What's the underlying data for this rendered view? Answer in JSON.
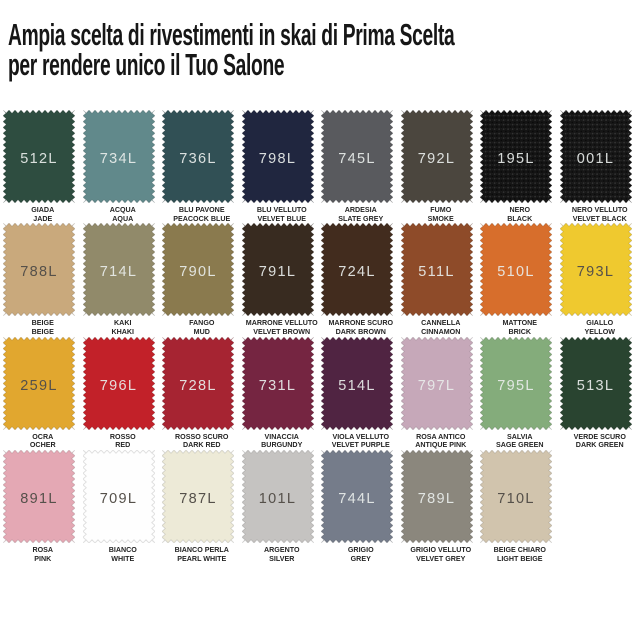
{
  "title": {
    "line1": "Ampia scelta di rivestimenti in skai di Prima Scelta",
    "line2": "per rendere unico il Tuo Salone",
    "color": "#161616"
  },
  "grid": {
    "columns": 8
  },
  "code_text_colors": {
    "light": "#e9edeb",
    "dark": "#55504a"
  },
  "swatches": [
    {
      "code": "512L",
      "name_it": "GIADA",
      "name_en": "JADE",
      "color": "#2e4d40",
      "code_text": "light",
      "grain": false
    },
    {
      "code": "734L",
      "name_it": "ACQUA",
      "name_en": "AQUA",
      "color": "#61898b",
      "code_text": "light",
      "grain": false
    },
    {
      "code": "736L",
      "name_it": "BLU PAVONE",
      "name_en": "PEACOCK BLUE",
      "color": "#315055",
      "code_text": "light",
      "grain": false
    },
    {
      "code": "798L",
      "name_it": "BLU VELLUTO",
      "name_en": "VELVET BLUE",
      "color": "#20263f",
      "code_text": "light",
      "grain": false
    },
    {
      "code": "745L",
      "name_it": "ARDESIA",
      "name_en": "SLATE GREY",
      "color": "#595a5e",
      "code_text": "light",
      "grain": false
    },
    {
      "code": "792L",
      "name_it": "FUMO",
      "name_en": "SMOKE",
      "color": "#4b463e",
      "code_text": "light",
      "grain": false
    },
    {
      "code": "195L",
      "name_it": "NERO",
      "name_en": "BLACK",
      "color": "#141414",
      "code_text": "light",
      "grain": true
    },
    {
      "code": "001L",
      "name_it": "NERO VELLUTO",
      "name_en": "VELVET BLACK",
      "color": "#161616",
      "code_text": "light",
      "grain": true
    },
    {
      "code": "788L",
      "name_it": "BEIGE",
      "name_en": "BEIGE",
      "color": "#c9a97c",
      "code_text": "dark",
      "grain": false
    },
    {
      "code": "714L",
      "name_it": "KAKI",
      "name_en": "KHAKI",
      "color": "#918a6a",
      "code_text": "light",
      "grain": false
    },
    {
      "code": "790L",
      "name_it": "FANGO",
      "name_en": "MUD",
      "color": "#8a7a4e",
      "code_text": "light",
      "grain": false
    },
    {
      "code": "791L",
      "name_it": "MARRONE VELLUTO",
      "name_en": "VELVET BROWN",
      "color": "#382b20",
      "code_text": "light",
      "grain": false
    },
    {
      "code": "724L",
      "name_it": "MARRONE SCURO",
      "name_en": "DARK BROWN",
      "color": "#422c1e",
      "code_text": "light",
      "grain": false
    },
    {
      "code": "511L",
      "name_it": "CANNELLA",
      "name_en": "CINNAMON",
      "color": "#8e4b29",
      "code_text": "light",
      "grain": false
    },
    {
      "code": "510L",
      "name_it": "MATTONE",
      "name_en": "BRICK",
      "color": "#d76e2c",
      "code_text": "light",
      "grain": false
    },
    {
      "code": "793L",
      "name_it": "GIALLO",
      "name_en": "YELLOW",
      "color": "#efc92f",
      "code_text": "dark",
      "grain": false
    },
    {
      "code": "259L",
      "name_it": "OCRA",
      "name_en": "OCHER",
      "color": "#e1a72f",
      "code_text": "dark",
      "grain": false
    },
    {
      "code": "796L",
      "name_it": "ROSSO",
      "name_en": "RED",
      "color": "#c22129",
      "code_text": "light",
      "grain": false
    },
    {
      "code": "728L",
      "name_it": "ROSSO SCURO",
      "name_en": "DARK RED",
      "color": "#a62432",
      "code_text": "light",
      "grain": false
    },
    {
      "code": "731L",
      "name_it": "VINACCIA",
      "name_en": "BURGUNDY",
      "color": "#752541",
      "code_text": "light",
      "grain": false
    },
    {
      "code": "514L",
      "name_it": "VIOLA VELLUTO",
      "name_en": "VELVET PURPLE",
      "color": "#502442",
      "code_text": "light",
      "grain": false
    },
    {
      "code": "797L",
      "name_it": "ROSA ANTICO",
      "name_en": "ANTIQUE PINK",
      "color": "#c6a8b9",
      "code_text": "light",
      "grain": false
    },
    {
      "code": "795L",
      "name_it": "SALVIA",
      "name_en": "SAGE GREEN",
      "color": "#84ac7b",
      "code_text": "light",
      "grain": false
    },
    {
      "code": "513L",
      "name_it": "VERDE SCURO",
      "name_en": "DARK GREEN",
      "color": "#294430",
      "code_text": "light",
      "grain": false
    },
    {
      "code": "891L",
      "name_it": "ROSA",
      "name_en": "PINK",
      "color": "#e4a8b4",
      "code_text": "dark",
      "grain": false
    },
    {
      "code": "709L",
      "name_it": "BIANCO",
      "name_en": "WHITE",
      "color": "#fefefe",
      "code_text": "dark",
      "grain": false
    },
    {
      "code": "787L",
      "name_it": "BIANCO PERLA",
      "name_en": "PEARL WHITE",
      "color": "#edead7",
      "code_text": "dark",
      "grain": false
    },
    {
      "code": "101L",
      "name_it": "ARGENTO",
      "name_en": "SILVER",
      "color": "#c5c3c1",
      "code_text": "dark",
      "grain": false
    },
    {
      "code": "744L",
      "name_it": "GRIGIO",
      "name_en": "GREY",
      "color": "#757c8a",
      "code_text": "light",
      "grain": false
    },
    {
      "code": "789L",
      "name_it": "GRIGIO VELLUTO",
      "name_en": "VELVET GREY",
      "color": "#8b877d",
      "code_text": "light",
      "grain": false
    },
    {
      "code": "710L",
      "name_it": "BEIGE CHIARO",
      "name_en": "LIGHT BEIGE",
      "color": "#d1c4ad",
      "code_text": "dark",
      "grain": false
    }
  ]
}
